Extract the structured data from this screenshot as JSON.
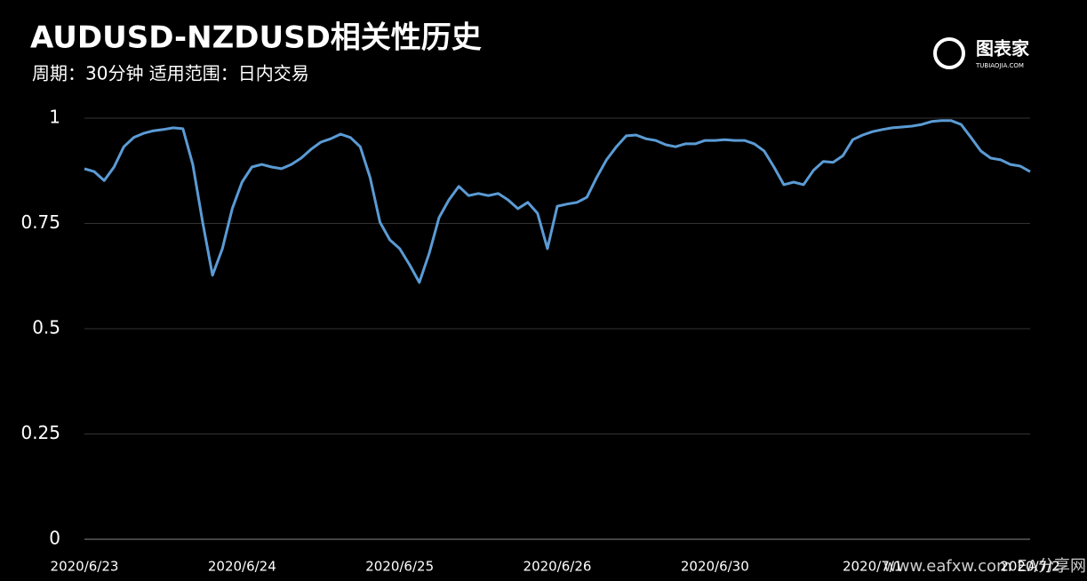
{
  "chart_data": {
    "type": "line",
    "title": "AUDUSD-NZDUSD相关性历史",
    "subtitle": "周期：30分钟 适用范围：日内交易",
    "logo": "图表家",
    "logo_sub": "TUBIAOJIA.COM",
    "watermark": "www.eafxw.com EA分享网",
    "categories": [
      "2020/6/23",
      null,
      null,
      null,
      null,
      null,
      null,
      null,
      null,
      null,
      null,
      null,
      null,
      null,
      null,
      null,
      "2020/6/24",
      null,
      null,
      null,
      null,
      null,
      null,
      null,
      null,
      null,
      null,
      null,
      null,
      null,
      null,
      null,
      "2020/6/25",
      null,
      null,
      null,
      null,
      null,
      null,
      null,
      null,
      null,
      null,
      null,
      null,
      null,
      null,
      null,
      "2020/6/26",
      null,
      null,
      null,
      null,
      null,
      null,
      null,
      null,
      null,
      null,
      null,
      null,
      null,
      null,
      null,
      "2020/6/30",
      null,
      null,
      null,
      null,
      null,
      null,
      null,
      null,
      null,
      null,
      null,
      null,
      null,
      null,
      null,
      "2020/7/1",
      null,
      null,
      null,
      null,
      null,
      null,
      null,
      null,
      null,
      null,
      null,
      null,
      null,
      null,
      null,
      "2020/7/2"
    ],
    "series": [
      {
        "name": "AUDUSD-NZDUSD",
        "color": "#5b9bd5",
        "values": [
          0.88,
          0.873,
          0.852,
          0.884,
          0.932,
          0.954,
          0.964,
          0.97,
          0.973,
          0.977,
          0.975,
          0.89,
          0.753,
          0.627,
          0.69,
          0.785,
          0.848,
          0.884,
          0.89,
          0.884,
          0.88,
          0.89,
          0.905,
          0.926,
          0.943,
          0.951,
          0.962,
          0.954,
          0.932,
          0.859,
          0.753,
          0.711,
          0.69,
          0.652,
          0.61,
          0.679,
          0.764,
          0.806,
          0.838,
          0.816,
          0.821,
          0.816,
          0.821,
          0.806,
          0.785,
          0.8,
          0.774,
          0.69,
          0.791,
          0.796,
          0.8,
          0.812,
          0.859,
          0.901,
          0.932,
          0.958,
          0.96,
          0.951,
          0.947,
          0.937,
          0.932,
          0.939,
          0.939,
          0.947,
          0.947,
          0.949,
          0.947,
          0.947,
          0.939,
          0.922,
          0.884,
          0.842,
          0.848,
          0.842,
          0.876,
          0.897,
          0.895,
          0.911,
          0.949,
          0.96,
          0.968,
          0.973,
          0.977,
          0.979,
          0.981,
          0.985,
          0.992,
          0.994,
          0.994,
          0.985,
          0.954,
          0.922,
          0.905,
          0.901,
          0.89,
          0.886,
          0.873
        ]
      }
    ],
    "ylim": [
      0,
      1
    ],
    "yticks": [
      0,
      0.25,
      0.5,
      0.75,
      1
    ],
    "grid": true
  }
}
